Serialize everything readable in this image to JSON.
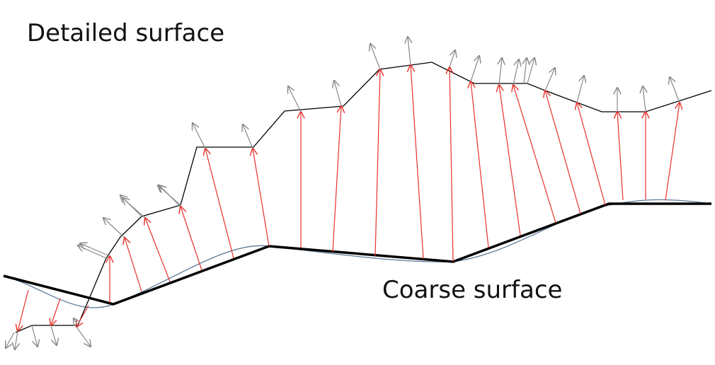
{
  "labels": {
    "detailed": "Detailed surface",
    "coarse": "Coarse surface"
  }
}
